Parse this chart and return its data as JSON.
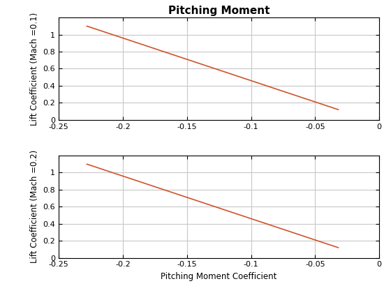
{
  "title": "Pitching Moment",
  "xlabel": "Pitching Moment Coefficient",
  "ylabel1": "Lift Coefficient (Mach =0.1)",
  "ylabel2": "Lift Coefficient (Mach =0.2)",
  "xlim": [
    -0.25,
    0
  ],
  "ylim": [
    0,
    1.2
  ],
  "xticks": [
    -0.25,
    -0.2,
    -0.15,
    -0.1,
    -0.05,
    0
  ],
  "yticks": [
    0,
    0.2,
    0.4,
    0.6,
    0.8,
    1.0
  ],
  "line1_x": [
    -0.228,
    -0.032
  ],
  "line1_y": [
    1.1,
    0.12
  ],
  "line2_x": [
    -0.228,
    -0.032
  ],
  "line2_y": [
    1.1,
    0.12
  ],
  "line_color": "#D2522A",
  "background_color": "#ffffff",
  "grid_color": "#c8c8c8",
  "title_fontsize": 11,
  "label_fontsize": 8.5,
  "tick_fontsize": 8
}
